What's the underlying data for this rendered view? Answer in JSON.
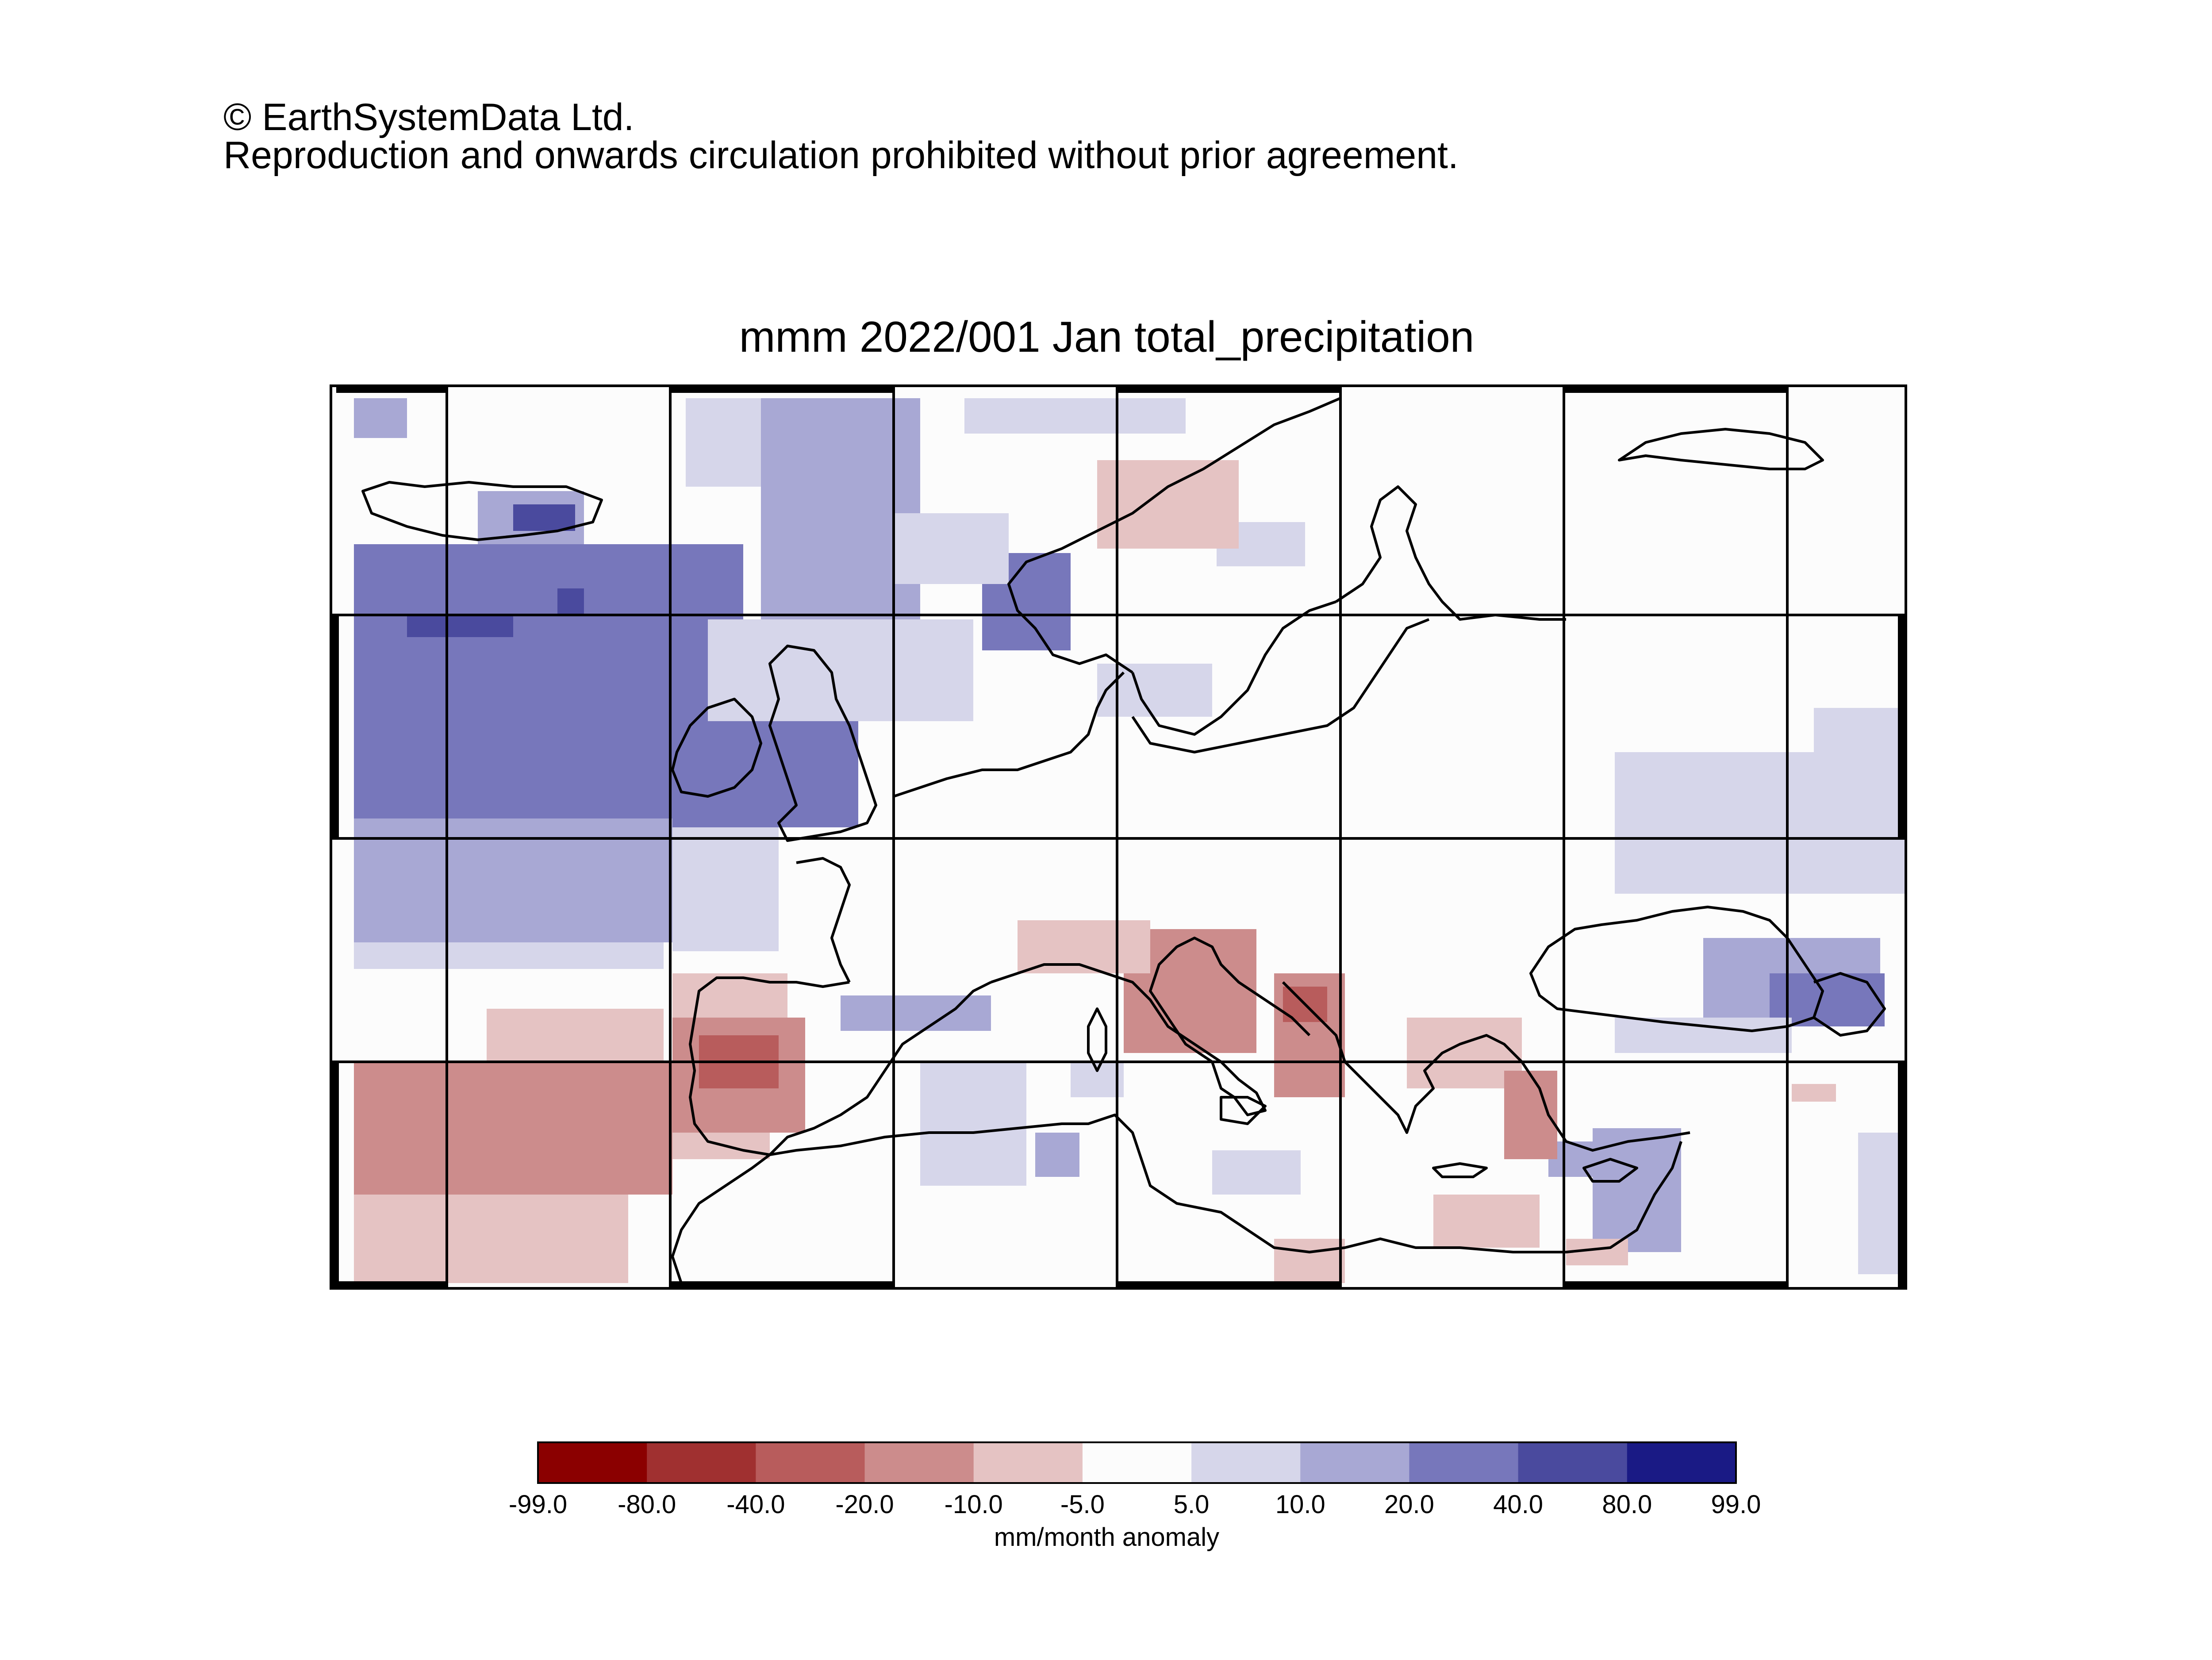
{
  "header": {
    "copyright_line1": "© EarthSystemData Ltd.",
    "copyright_line2": "Reproduction and onwards circulation prohibited without prior agreement."
  },
  "map": {
    "title": "mmm 2022/001 Jan total_precipitation",
    "variable": "total_precipitation",
    "period": "2022/001 Jan",
    "region": "Europe / North Atlantic / Mediterranean"
  },
  "colorbar": {
    "unit": "mm/month anomaly",
    "ticks": [
      "-99.0",
      "-80.0",
      "-40.0",
      "-20.0",
      "-10.0",
      "-5.0",
      "5.0",
      "10.0",
      "20.0",
      "40.0",
      "80.0",
      "99.0"
    ],
    "colors": [
      "#8b0000",
      "#a03030",
      "#b85c5c",
      "#cc8c8c",
      "#e5c3c3",
      "#fcfcfc",
      "#d6d6ea",
      "#a8a8d4",
      "#7777bb",
      "#4a4a9e",
      "#1a1a85"
    ]
  },
  "chart_data": {
    "type": "heatmap",
    "title": "mmm 2022/001 Jan total_precipitation",
    "legend_label": "mm/month anomaly",
    "value_range": [
      -99.0,
      99.0
    ],
    "color_levels": [
      -99.0,
      -80.0,
      -40.0,
      -20.0,
      -10.0,
      -5.0,
      5.0,
      10.0,
      20.0,
      40.0,
      80.0,
      99.0
    ],
    "grid": true
  }
}
